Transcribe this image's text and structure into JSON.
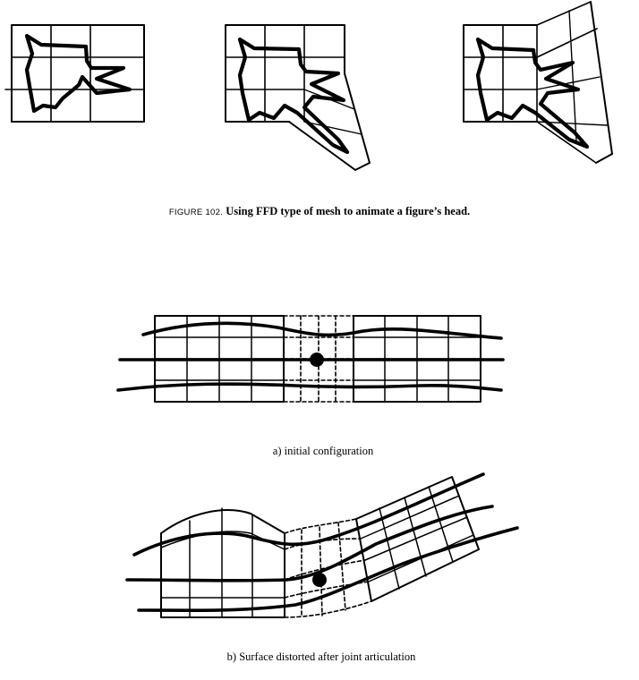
{
  "figure": {
    "number": "FIGURE 102.",
    "caption": "Using FFD type of mesh to animate a figure’s head."
  },
  "panels": {
    "a_label": "a) initial configuration",
    "b_label": "b) Surface distorted after joint articulation"
  }
}
